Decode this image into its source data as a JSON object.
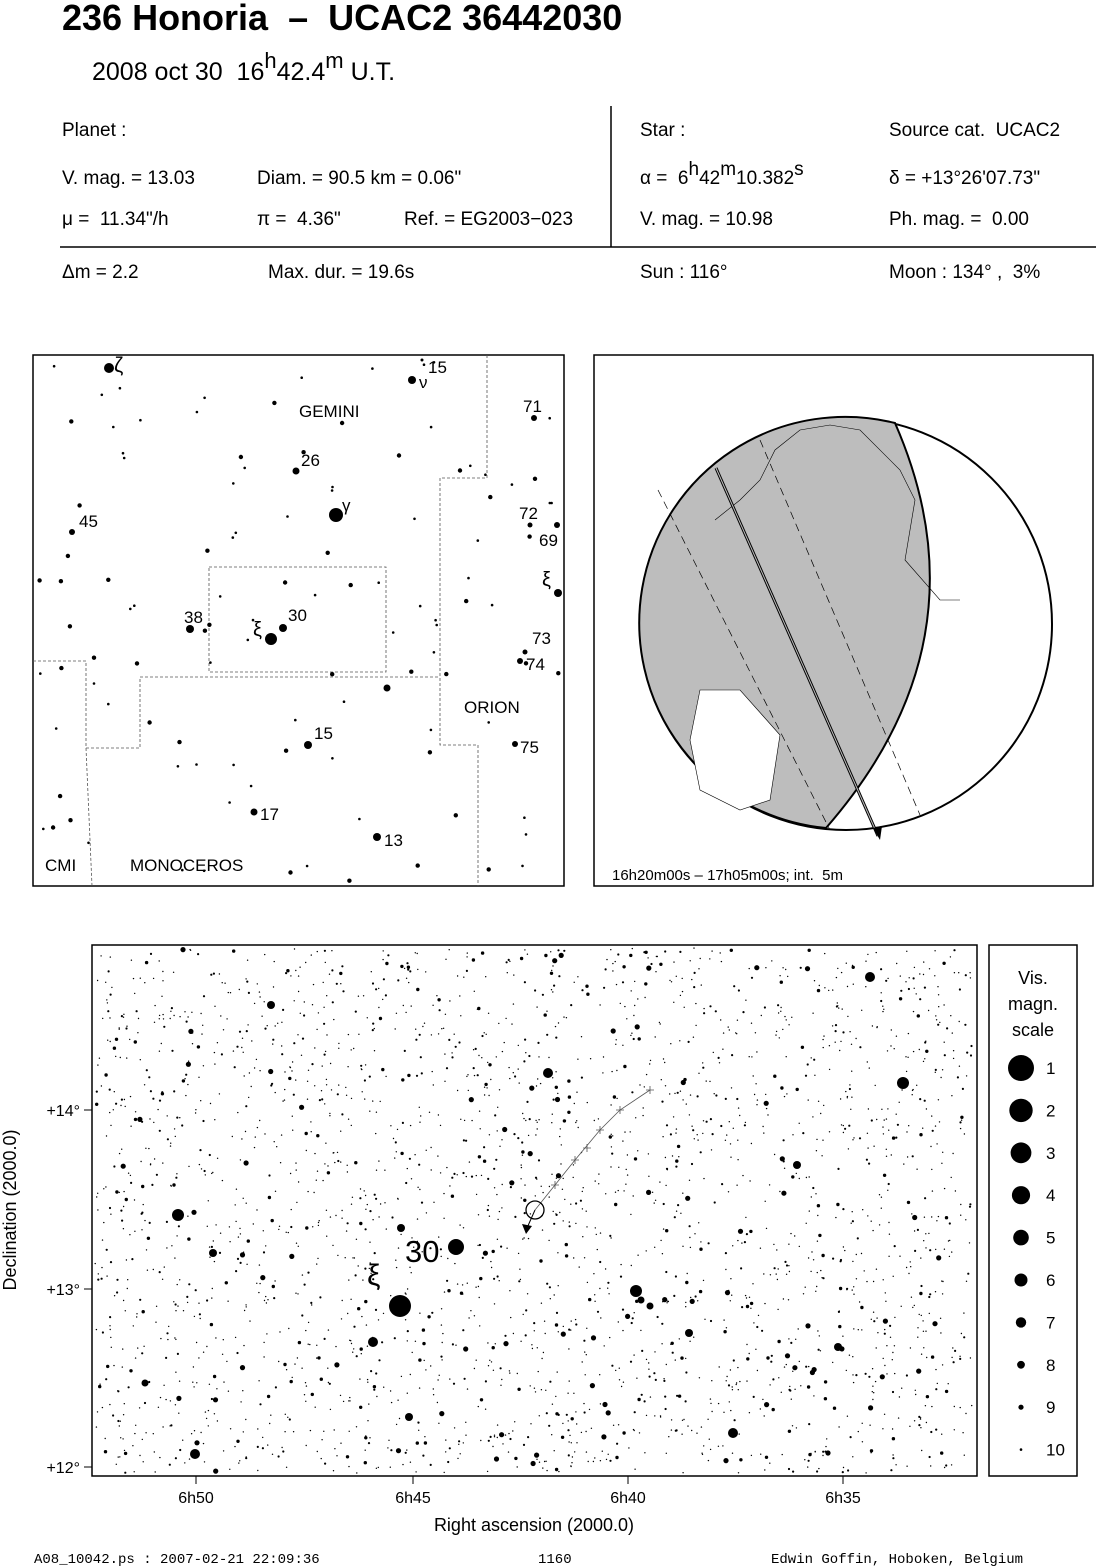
{
  "header": {
    "title": "236 Honoria  –  UCAC2 36442030",
    "subtitle": [
      "2008 oct 30  16",
      "h",
      "42.4",
      "m",
      " U.T."
    ]
  },
  "info": {
    "planet_heading": "Planet :",
    "planet_vmag": "V. mag. = 13.03",
    "diam": "Diam. = 90.5 km = 0.06\"",
    "mu": "μ =  11.34\"/h",
    "pi": "π =  4.36\"",
    "ref": "Ref. = EG2003−023",
    "star_heading": "Star :",
    "source": "Source cat.  UCAC2",
    "alpha": [
      "α =  6",
      "h",
      "42",
      "m",
      "10.382",
      "s"
    ],
    "delta": "δ = +13°26'07.73\"",
    "star_vmag": "V. mag. = 10.98",
    "phmag": "Ph. mag. =  0.00",
    "dm": "Δm = 2.2",
    "maxdur": "Max. dur. = 19.6s",
    "sun": "Sun : 116°",
    "moon": "Moon : 134° ,  3%"
  },
  "finder": {
    "labels": [
      "ζ",
      "15",
      "ν",
      "GEMINI",
      "71",
      "26",
      "γ",
      "45",
      "72",
      "69",
      "ξ",
      "38",
      "30",
      "ξ",
      "73",
      "74",
      "ORION",
      "15",
      "75",
      "17",
      "13",
      "CMI",
      "MONOCEROS"
    ]
  },
  "globe": {
    "caption": "16h20m00s – 17h05m00s; int.  5m"
  },
  "starchart": {
    "xlabel": "Right ascension (2000.0)",
    "ylabel": "Declination (2000.0)",
    "xticks": [
      "6h50",
      "6h45",
      "6h40",
      "6h35"
    ],
    "yticks": [
      "+14°",
      "+13°",
      "+12°"
    ],
    "labels": [
      "30",
      "ξ"
    ],
    "scale_title": [
      "Vis.",
      "magn.",
      "scale"
    ],
    "scale": [
      "1",
      "2",
      "3",
      "4",
      "5",
      "6",
      "7",
      "8",
      "9",
      "10"
    ]
  },
  "footer": {
    "file": "A08_10042.ps : 2007-02-21 22:09:36",
    "number": "1160",
    "author": "Edwin Goffin, Hoboken, Belgium"
  }
}
